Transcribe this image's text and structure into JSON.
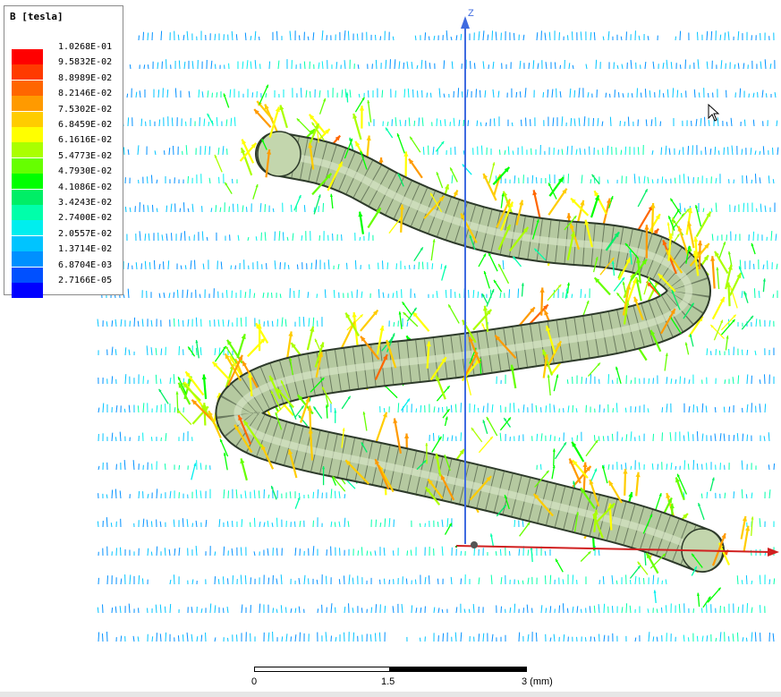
{
  "viewport": {
    "axis_label_z": "Z"
  },
  "legend": {
    "title": "B [tesla]",
    "entries": [
      {
        "label": "1.0268E-01",
        "color": "#ff0000"
      },
      {
        "label": "9.5832E-02",
        "color": "#ff3a00"
      },
      {
        "label": "8.8989E-02",
        "color": "#ff6600"
      },
      {
        "label": "8.2146E-02",
        "color": "#ff9a00"
      },
      {
        "label": "7.5302E-02",
        "color": "#ffcc00"
      },
      {
        "label": "6.8459E-02",
        "color": "#ffff00"
      },
      {
        "label": "6.1616E-02",
        "color": "#aaff00"
      },
      {
        "label": "5.4773E-02",
        "color": "#66ff00"
      },
      {
        "label": "4.7930E-02",
        "color": "#00ff00"
      },
      {
        "label": "4.1086E-02",
        "color": "#00ee66"
      },
      {
        "label": "3.4243E-02",
        "color": "#00ffaa"
      },
      {
        "label": "2.7400E-02",
        "color": "#00eeee"
      },
      {
        "label": "2.0557E-02",
        "color": "#00c4ff"
      },
      {
        "label": "1.3714E-02",
        "color": "#0090ff"
      },
      {
        "label": "6.8704E-03",
        "color": "#0050ff"
      },
      {
        "label": "2.7166E-05",
        "color": "#0000ff"
      }
    ]
  },
  "scale_bar": {
    "ticks": [
      "0",
      "1.5",
      "3 (mm)"
    ]
  },
  "colors": {
    "coil_fill": "#b5c9a0",
    "coil_grid": "#2d3a2a",
    "z_axis": "#3f6be0",
    "x_axis": "#d02020"
  }
}
